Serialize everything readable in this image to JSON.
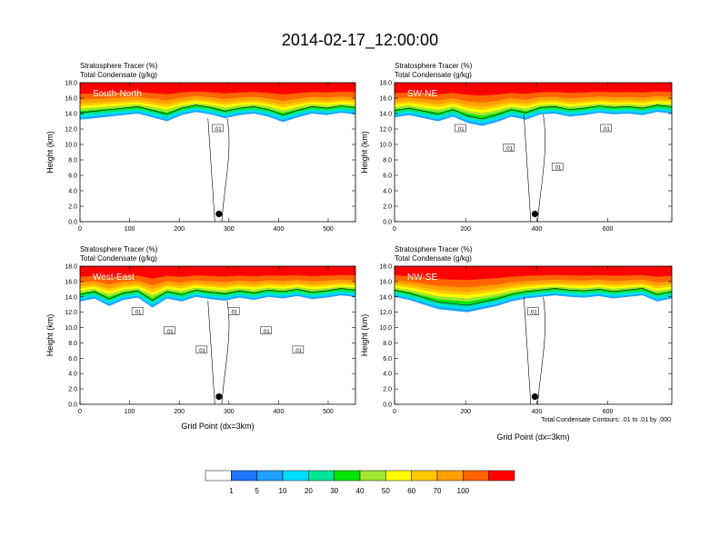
{
  "title": "2014-02-17_12:00:00",
  "footnote": "Total Condensate Contours: .01 to .01 by .000",
  "colorbar": {
    "labels": [
      "1",
      "5",
      "10",
      "20",
      "30",
      "40",
      "50",
      "60",
      "70",
      "100"
    ],
    "colors": [
      "#ffffff",
      "#1e78ff",
      "#1ea0ff",
      "#00dcff",
      "#00e696",
      "#00e600",
      "#a0e632",
      "#ffff00",
      "#ffc800",
      "#ffa000",
      "#ff6400",
      "#ff0000"
    ]
  },
  "chart_data": [
    {
      "type": "heatmap",
      "title_lines": [
        "Stratosphere Tracer   (%)",
        "Total Condensate   (g/kg)"
      ],
      "cross_section_label": "South-North",
      "xlabel": "",
      "ylabel": "Height (km)",
      "xlim": [
        0,
        555
      ],
      "ylim": [
        0,
        18
      ],
      "xticks": [
        0,
        100,
        200,
        300,
        400,
        500
      ],
      "yticks": [
        0.0,
        2.0,
        4.0,
        6.0,
        8.0,
        10.0,
        12.0,
        14.0,
        16.0,
        18.0
      ],
      "tropopause_km": [
        13.2,
        13.4,
        13.6,
        13.8,
        14.0,
        13.5,
        13.0,
        13.8,
        14.2,
        13.9,
        13.4,
        13.8,
        14.0,
        13.6,
        12.9,
        13.5,
        14.0,
        13.8,
        14.1,
        13.9
      ],
      "contour_labels": [
        ".01"
      ],
      "marker": {
        "x": 280,
        "y": 1.0
      }
    },
    {
      "type": "heatmap",
      "title_lines": [
        "Stratosphere Tracer   (%)",
        "Total Condensate   (g/kg)"
      ],
      "cross_section_label": "SW-NE",
      "xlabel": "",
      "ylabel": "Height (km)",
      "xlim": [
        0,
        780
      ],
      "ylim": [
        0,
        18
      ],
      "xticks": [
        0,
        200,
        400,
        600
      ],
      "yticks": [
        0.0,
        2.0,
        4.0,
        6.0,
        8.0,
        10.0,
        12.0,
        14.0,
        16.0,
        18.0
      ],
      "tropopause_km": [
        13.5,
        13.8,
        13.4,
        13.0,
        13.6,
        12.8,
        12.4,
        12.9,
        13.6,
        13.2,
        13.9,
        14.0,
        13.6,
        13.8,
        14.1,
        13.9,
        14.0,
        13.8,
        14.2,
        14.0
      ],
      "contour_labels": [
        ".01",
        ".01",
        ".01",
        ".01"
      ],
      "marker": {
        "x": 395,
        "y": 1.0
      }
    },
    {
      "type": "heatmap",
      "title_lines": [
        "Stratosphere Tracer   (%)",
        "Total Condensate   (g/kg)"
      ],
      "cross_section_label": "West-East",
      "xlabel": "Grid Point (dx=3km)",
      "ylabel": "Height (km)",
      "xlim": [
        0,
        555
      ],
      "ylim": [
        0,
        18
      ],
      "xticks": [
        0,
        100,
        200,
        300,
        400,
        500
      ],
      "yticks": [
        0.0,
        2.0,
        4.0,
        6.0,
        8.0,
        10.0,
        12.0,
        14.0,
        16.0,
        18.0
      ],
      "tropopause_km": [
        13.4,
        13.8,
        12.8,
        13.6,
        13.9,
        12.6,
        13.8,
        13.4,
        14.0,
        13.7,
        13.5,
        13.9,
        13.6,
        14.0,
        13.8,
        14.1,
        13.7,
        13.9,
        14.2,
        14.0
      ],
      "contour_labels": [
        ".01",
        ".01",
        ".01",
        ".01",
        ".01",
        ".01"
      ],
      "marker": {
        "x": 280,
        "y": 1.0
      }
    },
    {
      "type": "heatmap",
      "title_lines": [
        "Stratosphere Tracer   (%)",
        "Total Condensate   (g/kg)"
      ],
      "cross_section_label": "NW-SE",
      "xlabel": "Grid Point (dx=3km)",
      "ylabel": "Height (km)",
      "xlim": [
        0,
        780
      ],
      "ylim": [
        0,
        18
      ],
      "xticks": [
        0,
        200,
        400,
        600
      ],
      "yticks": [
        0.0,
        2.0,
        4.0,
        6.0,
        8.0,
        10.0,
        12.0,
        14.0,
        16.0,
        18.0
      ],
      "tropopause_km": [
        14.0,
        13.6,
        13.0,
        12.4,
        12.2,
        12.0,
        12.4,
        12.8,
        13.4,
        13.8,
        14.0,
        14.2,
        14.0,
        13.9,
        14.1,
        13.8,
        14.0,
        14.2,
        13.4,
        13.8
      ],
      "contour_labels": [
        ".01"
      ],
      "marker": {
        "x": 395,
        "y": 1.0
      }
    }
  ]
}
